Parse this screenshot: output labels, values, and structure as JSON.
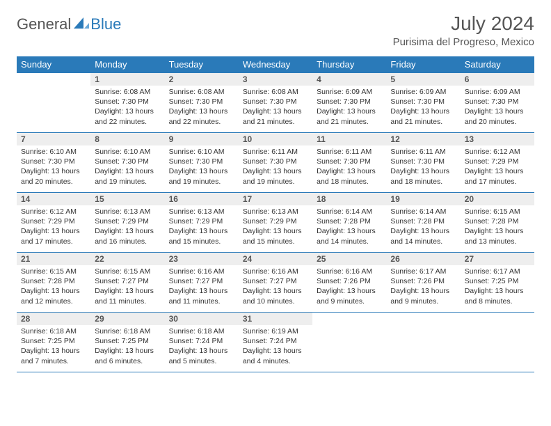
{
  "logo": {
    "general": "General",
    "blue": "Blue"
  },
  "title": "July 2024",
  "location": "Purisima del Progreso, Mexico",
  "colors": {
    "header_bg": "#2a7ab9",
    "header_text": "#ffffff",
    "daynum_bg": "#eeeeee",
    "text": "#333333",
    "rule": "#2a7ab9"
  },
  "day_headers": [
    "Sunday",
    "Monday",
    "Tuesday",
    "Wednesday",
    "Thursday",
    "Friday",
    "Saturday"
  ],
  "weeks": [
    [
      {
        "n": "",
        "sr": "",
        "ss": "",
        "dl": ""
      },
      {
        "n": "1",
        "sr": "Sunrise: 6:08 AM",
        "ss": "Sunset: 7:30 PM",
        "dl": "Daylight: 13 hours and 22 minutes."
      },
      {
        "n": "2",
        "sr": "Sunrise: 6:08 AM",
        "ss": "Sunset: 7:30 PM",
        "dl": "Daylight: 13 hours and 22 minutes."
      },
      {
        "n": "3",
        "sr": "Sunrise: 6:08 AM",
        "ss": "Sunset: 7:30 PM",
        "dl": "Daylight: 13 hours and 21 minutes."
      },
      {
        "n": "4",
        "sr": "Sunrise: 6:09 AM",
        "ss": "Sunset: 7:30 PM",
        "dl": "Daylight: 13 hours and 21 minutes."
      },
      {
        "n": "5",
        "sr": "Sunrise: 6:09 AM",
        "ss": "Sunset: 7:30 PM",
        "dl": "Daylight: 13 hours and 21 minutes."
      },
      {
        "n": "6",
        "sr": "Sunrise: 6:09 AM",
        "ss": "Sunset: 7:30 PM",
        "dl": "Daylight: 13 hours and 20 minutes."
      }
    ],
    [
      {
        "n": "7",
        "sr": "Sunrise: 6:10 AM",
        "ss": "Sunset: 7:30 PM",
        "dl": "Daylight: 13 hours and 20 minutes."
      },
      {
        "n": "8",
        "sr": "Sunrise: 6:10 AM",
        "ss": "Sunset: 7:30 PM",
        "dl": "Daylight: 13 hours and 19 minutes."
      },
      {
        "n": "9",
        "sr": "Sunrise: 6:10 AM",
        "ss": "Sunset: 7:30 PM",
        "dl": "Daylight: 13 hours and 19 minutes."
      },
      {
        "n": "10",
        "sr": "Sunrise: 6:11 AM",
        "ss": "Sunset: 7:30 PM",
        "dl": "Daylight: 13 hours and 19 minutes."
      },
      {
        "n": "11",
        "sr": "Sunrise: 6:11 AM",
        "ss": "Sunset: 7:30 PM",
        "dl": "Daylight: 13 hours and 18 minutes."
      },
      {
        "n": "12",
        "sr": "Sunrise: 6:11 AM",
        "ss": "Sunset: 7:30 PM",
        "dl": "Daylight: 13 hours and 18 minutes."
      },
      {
        "n": "13",
        "sr": "Sunrise: 6:12 AM",
        "ss": "Sunset: 7:29 PM",
        "dl": "Daylight: 13 hours and 17 minutes."
      }
    ],
    [
      {
        "n": "14",
        "sr": "Sunrise: 6:12 AM",
        "ss": "Sunset: 7:29 PM",
        "dl": "Daylight: 13 hours and 17 minutes."
      },
      {
        "n": "15",
        "sr": "Sunrise: 6:13 AM",
        "ss": "Sunset: 7:29 PM",
        "dl": "Daylight: 13 hours and 16 minutes."
      },
      {
        "n": "16",
        "sr": "Sunrise: 6:13 AM",
        "ss": "Sunset: 7:29 PM",
        "dl": "Daylight: 13 hours and 15 minutes."
      },
      {
        "n": "17",
        "sr": "Sunrise: 6:13 AM",
        "ss": "Sunset: 7:29 PM",
        "dl": "Daylight: 13 hours and 15 minutes."
      },
      {
        "n": "18",
        "sr": "Sunrise: 6:14 AM",
        "ss": "Sunset: 7:28 PM",
        "dl": "Daylight: 13 hours and 14 minutes."
      },
      {
        "n": "19",
        "sr": "Sunrise: 6:14 AM",
        "ss": "Sunset: 7:28 PM",
        "dl": "Daylight: 13 hours and 14 minutes."
      },
      {
        "n": "20",
        "sr": "Sunrise: 6:15 AM",
        "ss": "Sunset: 7:28 PM",
        "dl": "Daylight: 13 hours and 13 minutes."
      }
    ],
    [
      {
        "n": "21",
        "sr": "Sunrise: 6:15 AM",
        "ss": "Sunset: 7:28 PM",
        "dl": "Daylight: 13 hours and 12 minutes."
      },
      {
        "n": "22",
        "sr": "Sunrise: 6:15 AM",
        "ss": "Sunset: 7:27 PM",
        "dl": "Daylight: 13 hours and 11 minutes."
      },
      {
        "n": "23",
        "sr": "Sunrise: 6:16 AM",
        "ss": "Sunset: 7:27 PM",
        "dl": "Daylight: 13 hours and 11 minutes."
      },
      {
        "n": "24",
        "sr": "Sunrise: 6:16 AM",
        "ss": "Sunset: 7:27 PM",
        "dl": "Daylight: 13 hours and 10 minutes."
      },
      {
        "n": "25",
        "sr": "Sunrise: 6:16 AM",
        "ss": "Sunset: 7:26 PM",
        "dl": "Daylight: 13 hours and 9 minutes."
      },
      {
        "n": "26",
        "sr": "Sunrise: 6:17 AM",
        "ss": "Sunset: 7:26 PM",
        "dl": "Daylight: 13 hours and 9 minutes."
      },
      {
        "n": "27",
        "sr": "Sunrise: 6:17 AM",
        "ss": "Sunset: 7:25 PM",
        "dl": "Daylight: 13 hours and 8 minutes."
      }
    ],
    [
      {
        "n": "28",
        "sr": "Sunrise: 6:18 AM",
        "ss": "Sunset: 7:25 PM",
        "dl": "Daylight: 13 hours and 7 minutes."
      },
      {
        "n": "29",
        "sr": "Sunrise: 6:18 AM",
        "ss": "Sunset: 7:25 PM",
        "dl": "Daylight: 13 hours and 6 minutes."
      },
      {
        "n": "30",
        "sr": "Sunrise: 6:18 AM",
        "ss": "Sunset: 7:24 PM",
        "dl": "Daylight: 13 hours and 5 minutes."
      },
      {
        "n": "31",
        "sr": "Sunrise: 6:19 AM",
        "ss": "Sunset: 7:24 PM",
        "dl": "Daylight: 13 hours and 4 minutes."
      },
      {
        "n": "",
        "sr": "",
        "ss": "",
        "dl": ""
      },
      {
        "n": "",
        "sr": "",
        "ss": "",
        "dl": ""
      },
      {
        "n": "",
        "sr": "",
        "ss": "",
        "dl": ""
      }
    ]
  ]
}
